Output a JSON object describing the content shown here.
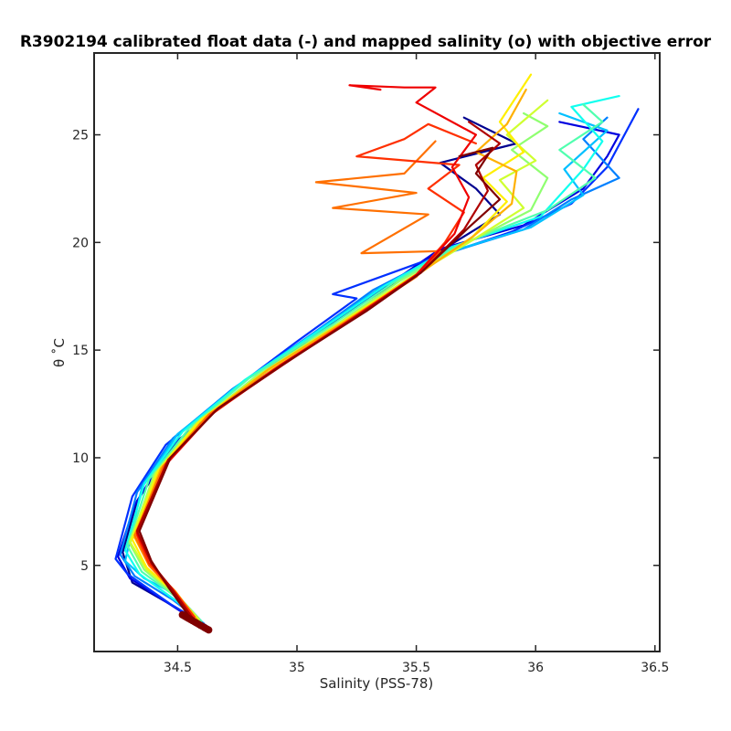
{
  "chart_data": {
    "type": "line",
    "title": "R3902194 calibrated float data (-) and mapped salinity (o) with objective error",
    "xlabel": "Salinity (PSS-78)",
    "ylabel": "θ ˚C",
    "xlim": [
      34.15,
      36.52
    ],
    "ylim": [
      1.0,
      28.8
    ],
    "xticks": [
      34.5,
      35,
      35.5,
      36,
      36.5
    ],
    "yticks": [
      5,
      10,
      15,
      20,
      25
    ],
    "xtick_labels": [
      "34.5",
      "35",
      "35.5",
      "36",
      "36.5"
    ],
    "ytick_labels": [
      "5",
      "10",
      "15",
      "20",
      "25"
    ],
    "grid": false,
    "colormap": "jet (blue = early cycles, dark red = late cycles)",
    "deep_cluster": {
      "salinity_range": [
        34.52,
        34.63
      ],
      "theta_range": [
        2.0,
        2.7
      ],
      "color": "#800000"
    },
    "series": [
      {
        "color": "#00008F",
        "points": [
          [
            34.63,
            2.0
          ],
          [
            34.5,
            3.0
          ],
          [
            34.31,
            4.2
          ],
          [
            34.27,
            5.6
          ],
          [
            34.33,
            8.0
          ],
          [
            34.5,
            10.8
          ],
          [
            34.75,
            13.0
          ],
          [
            35.1,
            15.9
          ],
          [
            35.35,
            17.7
          ],
          [
            35.6,
            19.6
          ],
          [
            35.85,
            21.3
          ],
          [
            35.75,
            22.5
          ],
          [
            35.6,
            23.7
          ],
          [
            35.92,
            24.6
          ],
          [
            35.7,
            25.8
          ]
        ]
      },
      {
        "color": "#0000DF",
        "points": [
          [
            34.62,
            2.1
          ],
          [
            34.48,
            3.1
          ],
          [
            34.3,
            4.4
          ],
          [
            34.25,
            5.4
          ],
          [
            34.32,
            7.8
          ],
          [
            34.47,
            10.5
          ],
          [
            34.72,
            12.8
          ],
          [
            35.05,
            15.6
          ],
          [
            35.3,
            17.4
          ],
          [
            35.6,
            19.7
          ],
          [
            35.95,
            20.8
          ],
          [
            36.2,
            22.5
          ],
          [
            36.3,
            24.0
          ],
          [
            36.35,
            25.0
          ],
          [
            36.1,
            25.6
          ]
        ]
      },
      {
        "color": "#0030FF",
        "points": [
          [
            34.62,
            2.2
          ],
          [
            34.47,
            3.2
          ],
          [
            34.29,
            4.6
          ],
          [
            34.24,
            5.3
          ],
          [
            34.31,
            8.2
          ],
          [
            34.45,
            10.6
          ],
          [
            34.7,
            12.9
          ],
          [
            35.0,
            15.4
          ],
          [
            35.25,
            17.4
          ],
          [
            35.15,
            17.6
          ],
          [
            35.55,
            19.2
          ],
          [
            35.9,
            20.5
          ],
          [
            36.15,
            21.8
          ],
          [
            36.3,
            23.5
          ],
          [
            36.43,
            26.2
          ]
        ]
      },
      {
        "color": "#0080FF",
        "points": [
          [
            34.61,
            2.3
          ],
          [
            34.48,
            3.4
          ],
          [
            34.32,
            4.5
          ],
          [
            34.26,
            5.5
          ],
          [
            34.33,
            8.4
          ],
          [
            34.48,
            10.9
          ],
          [
            34.73,
            13.2
          ],
          [
            35.07,
            15.8
          ],
          [
            35.32,
            17.8
          ],
          [
            35.6,
            19.4
          ],
          [
            35.95,
            20.6
          ],
          [
            36.15,
            22.0
          ],
          [
            36.35,
            23.0
          ],
          [
            36.2,
            24.8
          ],
          [
            36.3,
            25.8
          ]
        ]
      },
      {
        "color": "#00C0FF",
        "points": [
          [
            34.6,
            2.4
          ],
          [
            34.5,
            3.6
          ],
          [
            34.36,
            4.4
          ],
          [
            34.28,
            5.2
          ],
          [
            34.35,
            8.6
          ],
          [
            34.5,
            11.1
          ],
          [
            34.76,
            13.4
          ],
          [
            35.1,
            16.0
          ],
          [
            35.35,
            17.9
          ],
          [
            35.62,
            19.5
          ],
          [
            35.98,
            20.7
          ],
          [
            36.2,
            22.2
          ],
          [
            36.12,
            23.4
          ],
          [
            36.3,
            25.2
          ],
          [
            36.1,
            26.0
          ]
        ]
      },
      {
        "color": "#10FFEF",
        "points": [
          [
            34.6,
            2.3
          ],
          [
            34.5,
            3.3
          ],
          [
            34.34,
            4.6
          ],
          [
            34.28,
            5.7
          ],
          [
            34.36,
            8.8
          ],
          [
            34.52,
            11.2
          ],
          [
            34.78,
            13.6
          ],
          [
            35.12,
            16.1
          ],
          [
            35.37,
            18.0
          ],
          [
            35.65,
            19.8
          ],
          [
            36.02,
            21.2
          ],
          [
            36.2,
            23.4
          ],
          [
            36.28,
            24.7
          ],
          [
            36.15,
            26.3
          ],
          [
            36.35,
            26.8
          ]
        ]
      },
      {
        "color": "#50FFAF",
        "points": [
          [
            34.6,
            2.4
          ],
          [
            34.51,
            3.4
          ],
          [
            34.35,
            4.7
          ],
          [
            34.29,
            5.9
          ],
          [
            34.38,
            9.0
          ],
          [
            34.55,
            11.4
          ],
          [
            34.8,
            13.7
          ],
          [
            35.15,
            16.2
          ],
          [
            35.4,
            18.1
          ],
          [
            35.68,
            19.9
          ],
          [
            36.05,
            21.5
          ],
          [
            36.25,
            23.0
          ],
          [
            36.1,
            24.3
          ],
          [
            36.28,
            25.6
          ],
          [
            36.2,
            26.4
          ]
        ]
      },
      {
        "color": "#8FFF70",
        "points": [
          [
            34.59,
            2.4
          ],
          [
            34.5,
            3.5
          ],
          [
            34.36,
            4.8
          ],
          [
            34.3,
            6.0
          ],
          [
            34.4,
            9.2
          ],
          [
            34.57,
            11.5
          ],
          [
            34.83,
            13.8
          ],
          [
            35.18,
            16.3
          ],
          [
            35.43,
            18.2
          ],
          [
            35.7,
            19.9
          ],
          [
            35.98,
            21.5
          ],
          [
            36.05,
            23.0
          ],
          [
            35.9,
            24.3
          ],
          [
            36.05,
            25.4
          ],
          [
            35.95,
            26.0
          ]
        ]
      },
      {
        "color": "#CFFF30",
        "points": [
          [
            34.59,
            2.5
          ],
          [
            34.5,
            3.6
          ],
          [
            34.37,
            4.8
          ],
          [
            34.3,
            6.1
          ],
          [
            34.41,
            9.3
          ],
          [
            34.58,
            11.6
          ],
          [
            34.85,
            13.9
          ],
          [
            35.2,
            16.4
          ],
          [
            35.45,
            18.2
          ],
          [
            35.72,
            20.0
          ],
          [
            35.95,
            21.6
          ],
          [
            35.85,
            22.9
          ],
          [
            36.0,
            23.8
          ],
          [
            35.88,
            25.0
          ],
          [
            36.05,
            26.6
          ]
        ]
      },
      {
        "color": "#FFEF00",
        "points": [
          [
            34.58,
            2.5
          ],
          [
            34.49,
            3.7
          ],
          [
            34.37,
            4.9
          ],
          [
            34.31,
            6.2
          ],
          [
            34.42,
            9.4
          ],
          [
            34.6,
            11.8
          ],
          [
            34.87,
            14.0
          ],
          [
            35.22,
            16.5
          ],
          [
            35.47,
            18.3
          ],
          [
            35.73,
            20.2
          ],
          [
            35.88,
            21.9
          ],
          [
            35.78,
            23.0
          ],
          [
            35.95,
            24.2
          ],
          [
            35.85,
            25.6
          ],
          [
            35.98,
            27.8
          ]
        ]
      },
      {
        "color": "#FFB000",
        "points": [
          [
            34.58,
            2.5
          ],
          [
            34.49,
            3.8
          ],
          [
            34.38,
            5.0
          ],
          [
            34.32,
            6.3
          ],
          [
            34.43,
            9.5
          ],
          [
            34.62,
            11.9
          ],
          [
            34.88,
            14.1
          ],
          [
            35.24,
            16.6
          ],
          [
            35.48,
            18.3
          ],
          [
            35.74,
            20.3
          ],
          [
            35.9,
            21.8
          ],
          [
            35.92,
            23.3
          ],
          [
            35.75,
            24.2
          ],
          [
            35.88,
            25.5
          ],
          [
            35.96,
            27.1
          ]
        ]
      },
      {
        "color": "#FF7000",
        "points": [
          [
            34.57,
            2.5
          ],
          [
            34.48,
            3.8
          ],
          [
            34.38,
            5.0
          ],
          [
            34.32,
            6.4
          ],
          [
            34.44,
            9.6
          ],
          [
            34.63,
            12.0
          ],
          [
            34.9,
            14.1
          ],
          [
            35.25,
            16.6
          ],
          [
            35.5,
            18.4
          ],
          [
            35.6,
            19.6
          ],
          [
            35.27,
            19.5
          ],
          [
            35.55,
            21.3
          ],
          [
            35.15,
            21.6
          ],
          [
            35.5,
            22.3
          ],
          [
            35.08,
            22.8
          ],
          [
            35.45,
            23.2
          ],
          [
            35.58,
            24.7
          ]
        ]
      },
      {
        "color": "#FF3000",
        "points": [
          [
            34.57,
            2.6
          ],
          [
            34.48,
            3.9
          ],
          [
            34.38,
            5.1
          ],
          [
            34.33,
            6.4
          ],
          [
            34.45,
            9.7
          ],
          [
            34.64,
            12.0
          ],
          [
            34.92,
            14.2
          ],
          [
            35.26,
            16.7
          ],
          [
            35.5,
            18.5
          ],
          [
            35.62,
            20.0
          ],
          [
            35.7,
            21.4
          ],
          [
            35.55,
            22.5
          ],
          [
            35.68,
            23.6
          ],
          [
            35.25,
            24.0
          ],
          [
            35.45,
            24.8
          ],
          [
            35.55,
            25.5
          ],
          [
            35.75,
            24.6
          ]
        ]
      },
      {
        "color": "#EF0000",
        "points": [
          [
            34.56,
            2.6
          ],
          [
            34.47,
            3.9
          ],
          [
            34.39,
            5.1
          ],
          [
            34.33,
            6.5
          ],
          [
            34.46,
            9.8
          ],
          [
            34.65,
            12.1
          ],
          [
            34.93,
            14.3
          ],
          [
            35.27,
            16.7
          ],
          [
            35.5,
            18.5
          ],
          [
            35.66,
            20.4
          ],
          [
            35.72,
            22.1
          ],
          [
            35.65,
            23.5
          ],
          [
            35.75,
            25.0
          ],
          [
            35.5,
            26.5
          ],
          [
            35.58,
            27.2
          ],
          [
            35.45,
            27.2
          ],
          [
            35.22,
            27.3
          ],
          [
            35.35,
            27.1
          ]
        ]
      },
      {
        "color": "#AF0000",
        "points": [
          [
            34.56,
            2.6
          ],
          [
            34.47,
            4.0
          ],
          [
            34.39,
            5.1
          ],
          [
            34.33,
            6.6
          ],
          [
            34.46,
            9.9
          ],
          [
            34.66,
            12.2
          ],
          [
            34.94,
            14.3
          ],
          [
            35.28,
            16.8
          ],
          [
            35.52,
            18.6
          ],
          [
            35.7,
            20.6
          ],
          [
            35.8,
            22.4
          ],
          [
            35.75,
            23.6
          ],
          [
            35.85,
            24.6
          ],
          [
            35.72,
            25.6
          ]
        ]
      },
      {
        "color": "#800000",
        "points": [
          [
            34.55,
            2.6
          ],
          [
            34.46,
            4.0
          ],
          [
            34.39,
            5.2
          ],
          [
            34.34,
            6.6
          ],
          [
            34.47,
            10.0
          ],
          [
            34.67,
            12.3
          ],
          [
            34.95,
            14.4
          ],
          [
            35.29,
            16.8
          ],
          [
            35.52,
            18.6
          ],
          [
            35.72,
            20.7
          ],
          [
            35.85,
            22.0
          ],
          [
            35.75,
            23.2
          ],
          [
            35.82,
            24.4
          ],
          [
            35.68,
            24.0
          ]
        ]
      }
    ]
  }
}
